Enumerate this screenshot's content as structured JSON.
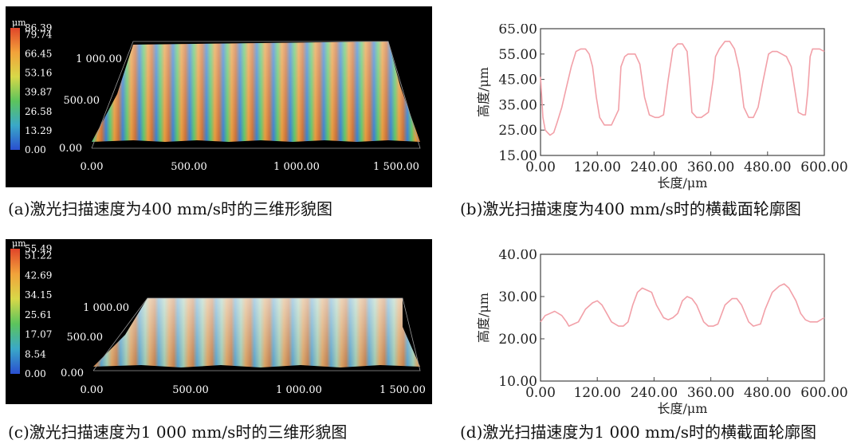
{
  "panels": [
    {
      "id": "a",
      "caption": "(a)激光扫描速度为400 mm/s时的三维形貌图",
      "colorbar": {
        "unit": "μm",
        "ticks": [
          "86.39",
          "79.74",
          "66.45",
          "53.16",
          "39.87",
          "26.58",
          "13.29",
          "0.00"
        ]
      },
      "x_ticks": [
        "0.00",
        "500.00",
        "1 000.00",
        "1 500.00"
      ],
      "y_ticks": [
        "0.00",
        "500.00",
        "1 000.00"
      ]
    },
    {
      "id": "c",
      "caption": "(c)激光扫描速度为1 000 mm/s时的三维形貌图",
      "colorbar": {
        "unit": "μm",
        "ticks": [
          "55.49",
          "51.22",
          "42.69",
          "34.15",
          "25.61",
          "17.07",
          "8.54",
          "0.00"
        ]
      },
      "x_ticks": [
        "0.00",
        "500.00",
        "1 000.00",
        "1 500.00"
      ],
      "y_ticks": [
        "0.00",
        "500.00",
        "1 000.00"
      ]
    }
  ],
  "chart_data": [
    {
      "id": "b",
      "type": "line",
      "caption": "(b)激光扫描速度为400 mm/s时的横截面轮廓图",
      "xlabel": "长度/μm",
      "ylabel": "高度/μm",
      "xlim": [
        0,
        600
      ],
      "ylim": [
        15,
        65
      ],
      "x_ticks": [
        "0.00",
        "120.00",
        "240.00",
        "360.00",
        "480.00",
        "600.00"
      ],
      "y_ticks": [
        "15.00",
        "25.00",
        "35.00",
        "45.00",
        "55.00",
        "65.00"
      ],
      "color": "#f2a0a8",
      "x": [
        0,
        5,
        10,
        15,
        20,
        28,
        35,
        45,
        55,
        65,
        75,
        85,
        95,
        103,
        110,
        118,
        125,
        135,
        150,
        165,
        170,
        178,
        185,
        190,
        200,
        210,
        220,
        230,
        242,
        250,
        260,
        270,
        280,
        290,
        300,
        310,
        315,
        320,
        330,
        340,
        355,
        365,
        370,
        378,
        390,
        400,
        410,
        420,
        430,
        440,
        450,
        460,
        470,
        482,
        490,
        500,
        510,
        520,
        530,
        545,
        555,
        560,
        565,
        570,
        575,
        580,
        590,
        600
      ],
      "y": [
        46,
        30,
        25,
        24,
        23,
        24,
        28,
        34,
        42,
        50,
        56,
        57,
        57,
        55,
        50,
        38,
        30,
        27,
        27,
        33,
        50,
        54,
        55,
        55,
        55,
        51,
        38,
        31,
        30,
        30,
        31,
        45,
        57,
        59,
        59,
        56,
        45,
        32,
        30,
        30,
        32,
        45,
        54,
        57,
        60,
        60,
        57,
        49,
        34,
        30,
        30,
        34,
        44,
        55,
        56,
        56,
        55,
        54,
        50,
        32,
        31,
        31,
        40,
        54,
        57,
        57,
        57,
        56
      ]
    },
    {
      "id": "d",
      "type": "line",
      "caption": "(d)激光扫描速度为1 000 mm/s时的横截面轮廓图",
      "xlabel": "长度/μm",
      "ylabel": "高度/μm",
      "xlim": [
        0,
        600
      ],
      "ylim": [
        10,
        40
      ],
      "x_ticks": [
        "0.00",
        "120.00",
        "240.00",
        "360.00",
        "480.00",
        "600.00"
      ],
      "y_ticks": [
        "10.00",
        "20.00",
        "30.00",
        "40.00"
      ],
      "color": "#f2a0a8",
      "x": [
        0,
        10,
        20,
        30,
        45,
        55,
        60,
        70,
        80,
        95,
        110,
        120,
        130,
        140,
        150,
        165,
        175,
        185,
        195,
        205,
        215,
        225,
        235,
        245,
        260,
        270,
        280,
        290,
        300,
        310,
        320,
        330,
        345,
        355,
        365,
        375,
        390,
        405,
        415,
        425,
        440,
        450,
        465,
        475,
        490,
        505,
        515,
        525,
        540,
        550,
        560,
        570,
        585,
        600
      ],
      "y": [
        24,
        25.5,
        26,
        26.5,
        25.5,
        24,
        23,
        23.5,
        24,
        27,
        28.5,
        29,
        28,
        26,
        24,
        23,
        23,
        24,
        28,
        31,
        32,
        31.5,
        31,
        28,
        25,
        24.5,
        25,
        26,
        29,
        30,
        29.5,
        28,
        24,
        23,
        23,
        23.5,
        28,
        29.5,
        29.5,
        28,
        24,
        23,
        23.5,
        27,
        31,
        32.5,
        33,
        32,
        29,
        26,
        24.5,
        24,
        24,
        25
      ]
    }
  ]
}
